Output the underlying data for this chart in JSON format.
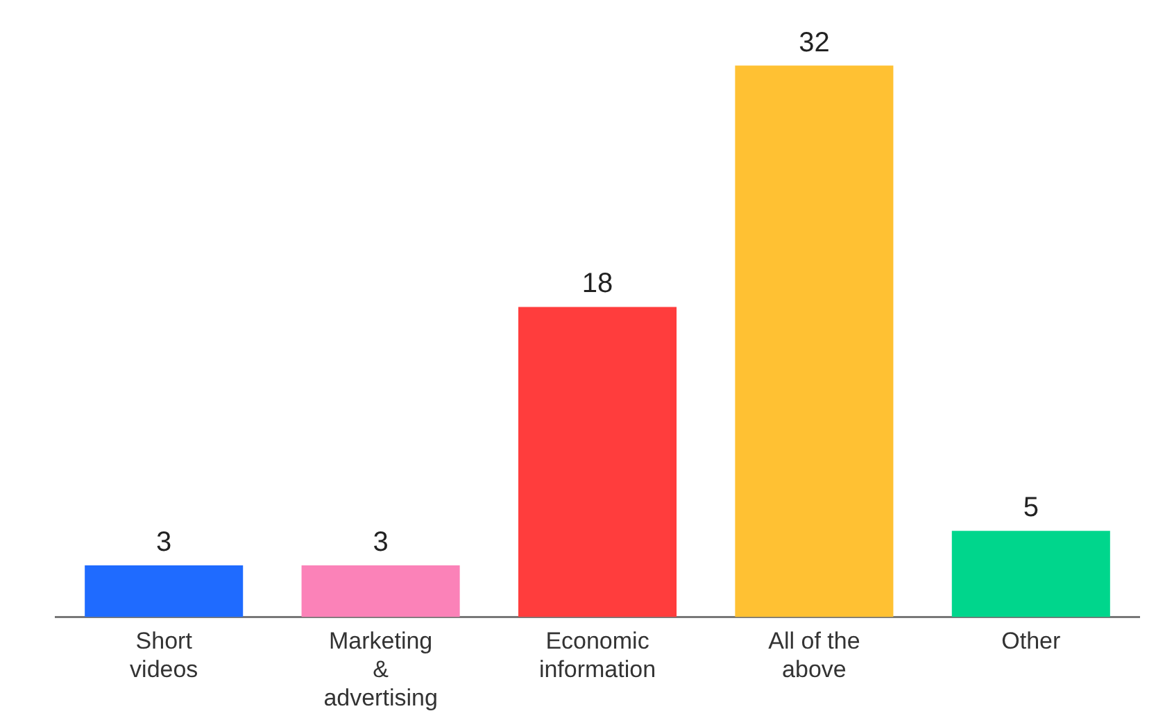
{
  "chart_data": {
    "type": "bar",
    "categories": [
      "Short videos",
      "Marketing & advertising",
      "Economic information",
      "All of the above",
      "Other"
    ],
    "values": [
      3,
      3,
      18,
      32,
      5
    ],
    "colors": [
      "#1f6bff",
      "#fb82b8",
      "#ff3d3d",
      "#ffc133",
      "#00d68c"
    ],
    "data_labels": true,
    "grid": false,
    "legend": false,
    "tick_labels": "x"
  }
}
